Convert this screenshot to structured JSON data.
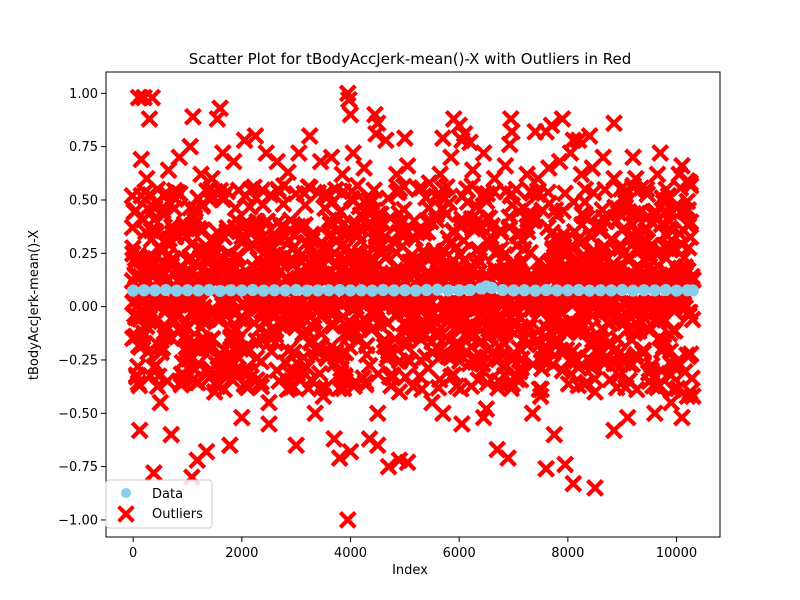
{
  "chart_data": {
    "type": "scatter",
    "title": "Scatter Plot for tBodyAccJerk-mean()-X with Outliers in Red",
    "xlabel": "Index",
    "ylabel": "tBodyAccJerk-mean()-X",
    "xlim": [
      -500,
      10800
    ],
    "ylim": [
      -1.08,
      1.1
    ],
    "xticks": [
      0,
      2000,
      4000,
      6000,
      8000,
      10000
    ],
    "xtick_labels": [
      "0",
      "2000",
      "4000",
      "6000",
      "8000",
      "10000"
    ],
    "yticks": [
      -1.0,
      -0.75,
      -0.5,
      -0.25,
      0.0,
      0.25,
      0.5,
      0.75,
      1.0
    ],
    "ytick_labels": [
      "−1.00",
      "−0.75",
      "−0.50",
      "−0.25",
      "0.00",
      "0.25",
      "0.50",
      "0.75",
      "1.00"
    ],
    "grid": false,
    "legend_position": "lower-left",
    "series": [
      {
        "name": "Data",
        "color": "#87CEEB",
        "marker": "circle",
        "x": [
          0,
          200,
          400,
          600,
          800,
          1000,
          1200,
          1400,
          1600,
          1800,
          2000,
          2200,
          2400,
          2600,
          2800,
          3000,
          3200,
          3400,
          3600,
          3800,
          4000,
          4200,
          4400,
          4600,
          4800,
          5000,
          5200,
          5400,
          5600,
          5800,
          6000,
          6200,
          6400,
          6500,
          6600,
          6800,
          7000,
          7200,
          7400,
          7600,
          7800,
          8000,
          8200,
          8400,
          8600,
          8800,
          9000,
          9200,
          9400,
          9600,
          9800,
          10000,
          10200,
          10300
        ],
        "y": [
          0.075,
          0.077,
          0.076,
          0.078,
          0.075,
          0.077,
          0.076,
          0.078,
          0.074,
          0.077,
          0.076,
          0.078,
          0.075,
          0.077,
          0.076,
          0.078,
          0.075,
          0.076,
          0.077,
          0.078,
          0.076,
          0.077,
          0.075,
          0.078,
          0.076,
          0.077,
          0.075,
          0.078,
          0.079,
          0.076,
          0.077,
          0.078,
          0.085,
          0.095,
          0.088,
          0.078,
          0.076,
          0.077,
          0.075,
          0.078,
          0.076,
          0.077,
          0.078,
          0.075,
          0.077,
          0.076,
          0.078,
          0.075,
          0.077,
          0.076,
          0.078,
          0.075,
          0.077,
          0.076
        ]
      },
      {
        "name": "Outliers",
        "color": "#FF0000",
        "marker": "x",
        "x": [
          100,
          200,
          350,
          300,
          150,
          1100,
          1600,
          1550,
          3950,
          3970,
          4000,
          4450,
          4500,
          4470,
          5000,
          5700,
          5900,
          6000,
          6100,
          6200,
          6950,
          6970,
          6930,
          7400,
          7700,
          7600,
          7900,
          8100,
          8200,
          8400,
          8850,
          9200,
          9700,
          10100,
          10200,
          50,
          150,
          250,
          450,
          650,
          850,
          1050,
          1250,
          1450,
          1650,
          1850,
          2050,
          2250,
          2450,
          2650,
          2850,
          3050,
          3250,
          3450,
          3650,
          3850,
          4050,
          4250,
          4650,
          4850,
          5050,
          5250,
          5450,
          5650,
          5850,
          6050,
          6250,
          6450,
          6650,
          6850,
          7050,
          7250,
          7450,
          7650,
          7850,
          8050,
          8250,
          8450,
          8650,
          8850,
          9050,
          9250,
          9450,
          9650,
          9850,
          10050,
          10250,
          120,
          380,
          700,
          1080,
          1180,
          1350,
          1780,
          2000,
          2500,
          3000,
          3350,
          3700,
          3800,
          3950,
          4000,
          4350,
          4500,
          4700,
          4900,
          5050,
          5700,
          6050,
          6450,
          6700,
          6900,
          7350,
          7600,
          7750,
          7950,
          8100,
          8500,
          8850,
          9100,
          9600,
          9900,
          10100,
          10250,
          10300,
          500,
          1500,
          2500,
          3500,
          4500,
          5500,
          6500,
          7500,
          8500,
          9500,
          10200,
          900,
          1900,
          2900,
          3900,
          4900,
          5900,
          6900,
          7900,
          8900,
          9900
        ],
        "y": [
          0.98,
          0.98,
          0.98,
          0.88,
          0.69,
          0.89,
          0.93,
          0.88,
          1.0,
          0.97,
          0.9,
          0.9,
          0.86,
          0.81,
          0.79,
          0.79,
          0.88,
          0.85,
          0.81,
          0.77,
          0.88,
          0.82,
          0.76,
          0.82,
          0.85,
          0.82,
          0.88,
          0.78,
          0.78,
          0.8,
          0.86,
          0.7,
          0.72,
          0.66,
          0.59,
          0.45,
          0.52,
          0.6,
          0.55,
          0.64,
          0.7,
          0.75,
          0.62,
          0.6,
          0.72,
          0.68,
          0.78,
          0.8,
          0.72,
          0.68,
          0.63,
          0.72,
          0.8,
          0.68,
          0.7,
          0.62,
          0.72,
          0.65,
          0.78,
          0.62,
          0.66,
          0.55,
          0.58,
          0.62,
          0.7,
          0.78,
          0.64,
          0.72,
          0.6,
          0.66,
          0.55,
          0.62,
          0.6,
          0.65,
          0.68,
          0.72,
          0.62,
          0.65,
          0.7,
          0.6,
          0.52,
          0.6,
          0.55,
          0.62,
          0.52,
          0.62,
          0.58,
          -0.58,
          -0.78,
          -0.6,
          -0.8,
          -0.72,
          -0.68,
          -0.65,
          -0.52,
          -0.55,
          -0.65,
          -0.5,
          -0.62,
          -0.71,
          -1.0,
          -0.68,
          -0.62,
          -0.65,
          -0.75,
          -0.72,
          -0.73,
          -0.5,
          -0.55,
          -0.52,
          -0.67,
          -0.71,
          -0.5,
          -0.76,
          -0.6,
          -0.74,
          -0.83,
          -0.85,
          -0.58,
          -0.52,
          -0.5,
          -0.45,
          -0.52,
          -0.4,
          -0.42,
          -0.45,
          -0.4,
          -0.45,
          -0.42,
          -0.5,
          -0.45,
          -0.48,
          -0.42,
          -0.4,
          -0.35,
          -0.42,
          -0.35,
          -0.3,
          -0.38,
          -0.35,
          -0.4,
          -0.32,
          -0.36,
          -0.3,
          -0.38,
          -0.32
        ]
      }
    ]
  }
}
